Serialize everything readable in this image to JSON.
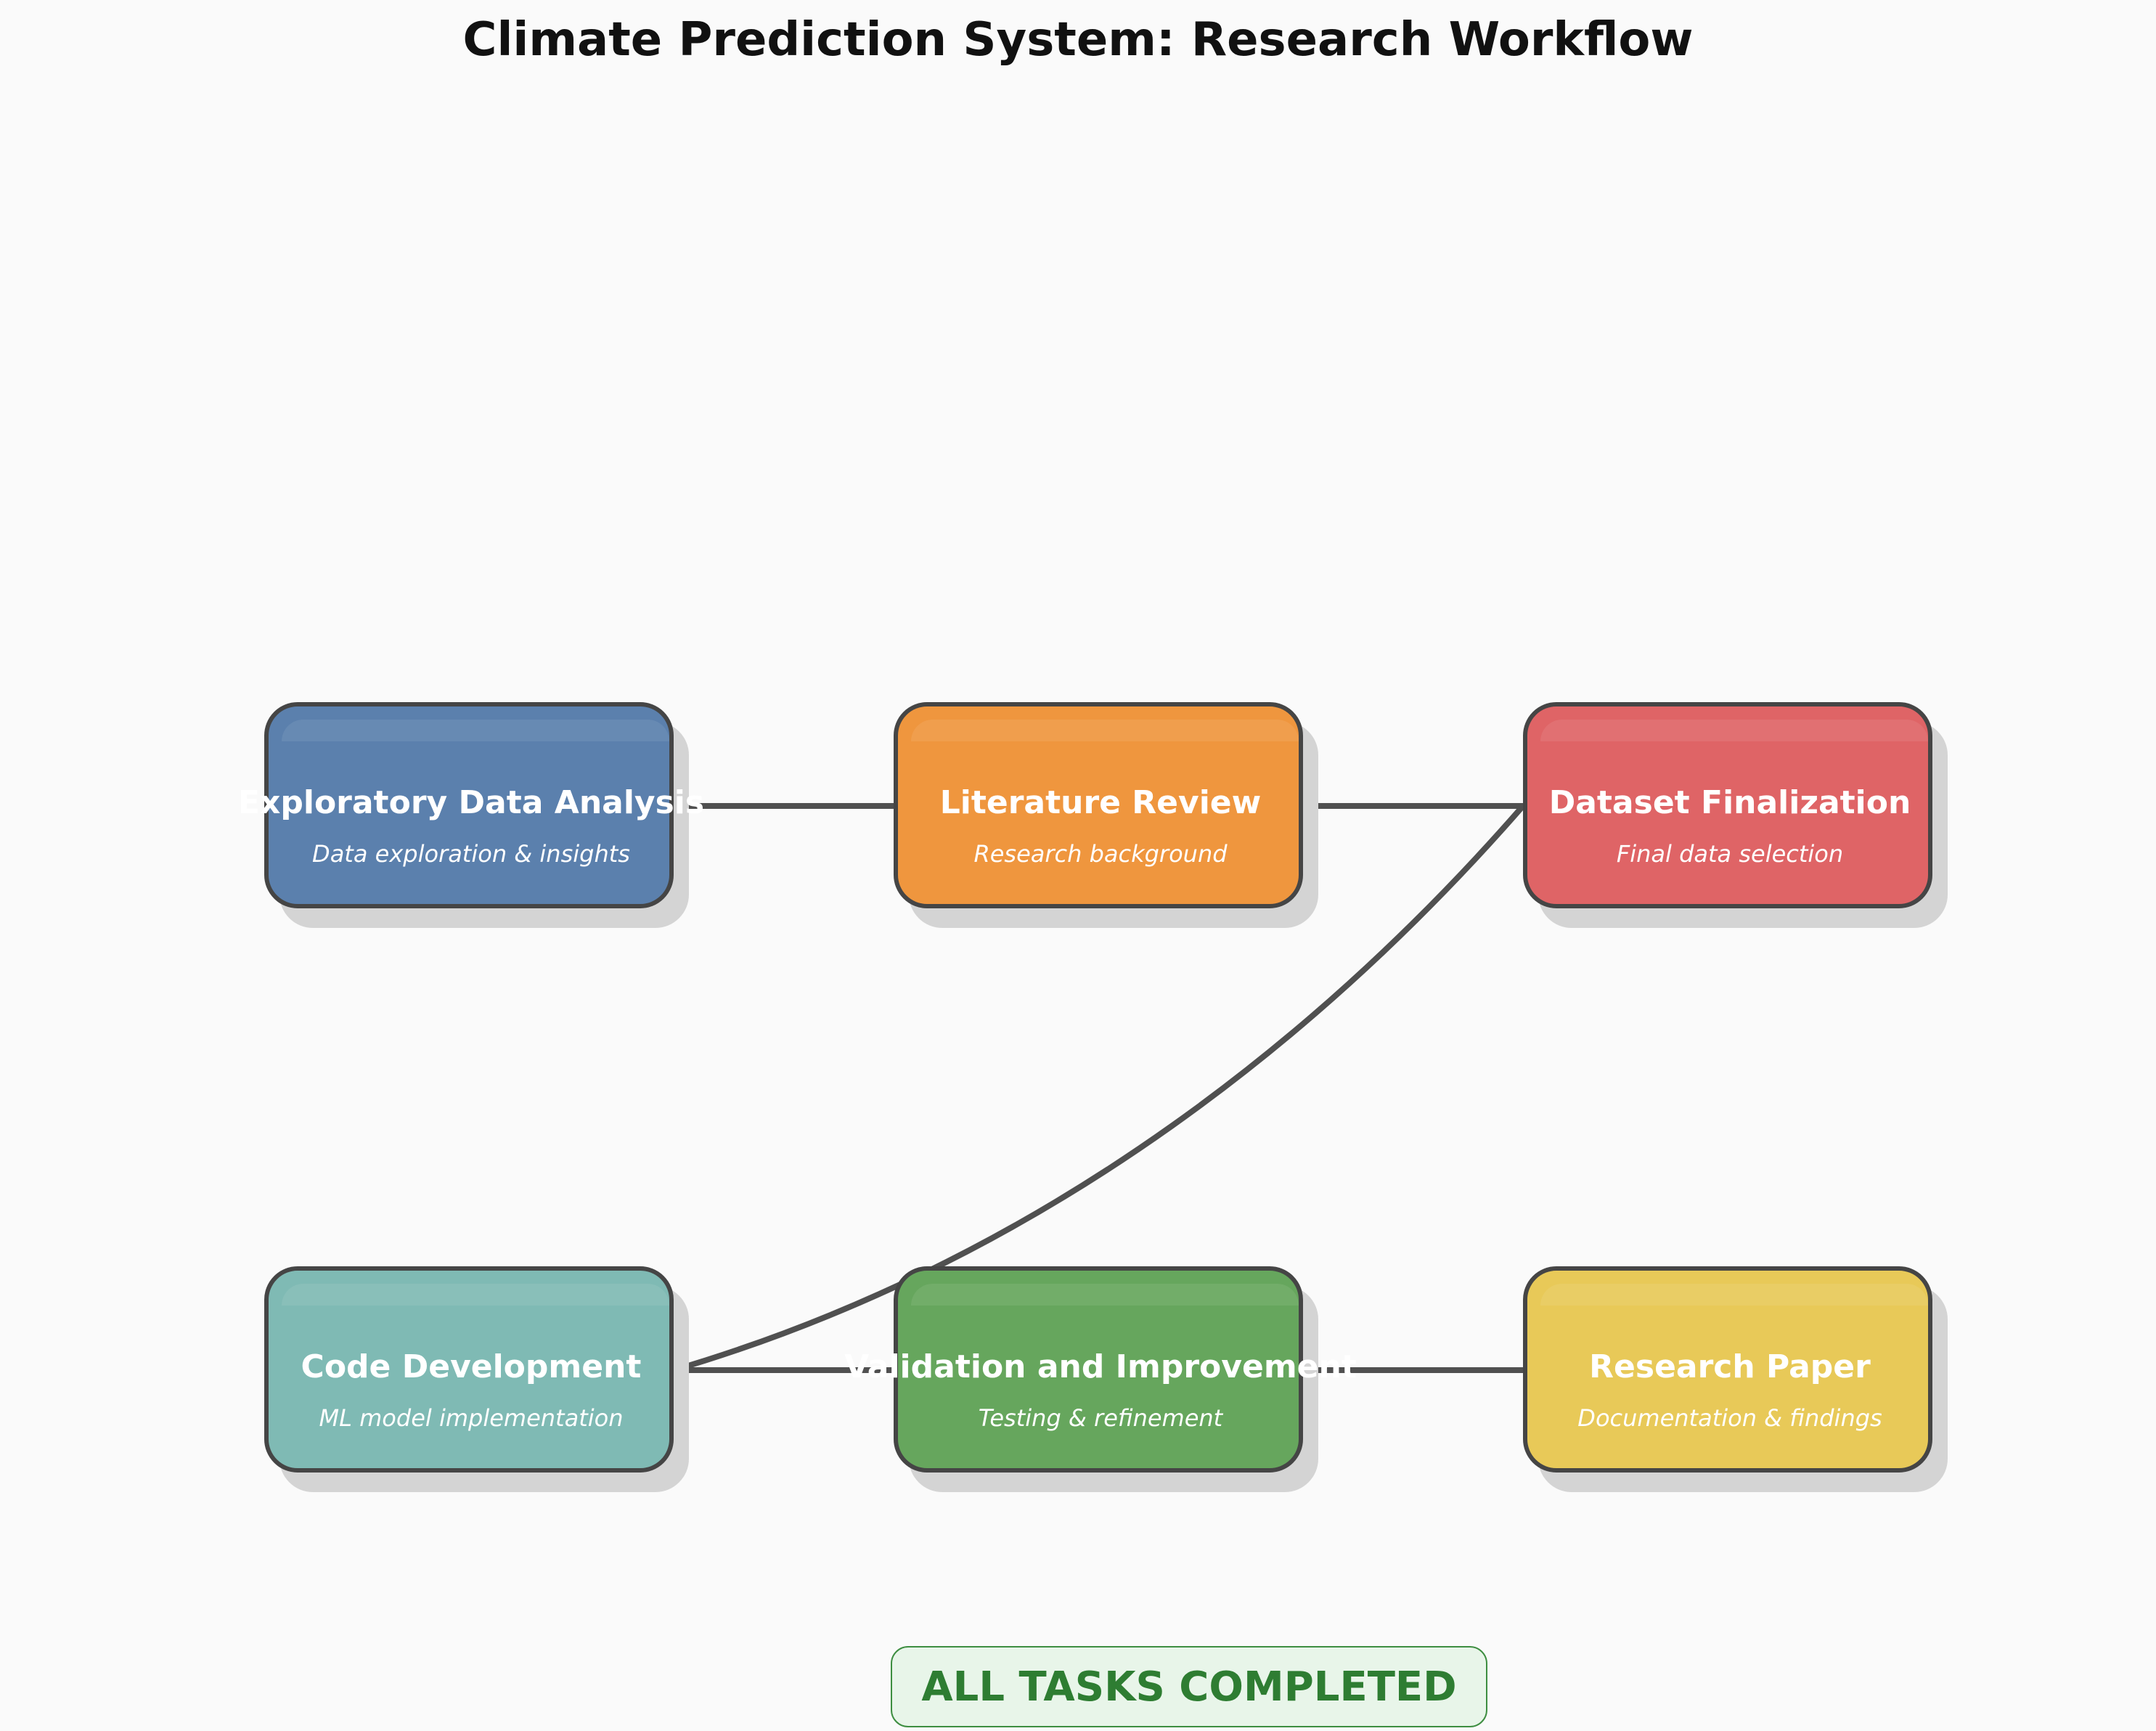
{
  "title": "Climate Prediction System: Research Workflow",
  "nodes": [
    {
      "label": "Exploratory Data Analysis",
      "sub": "Data exploration & insights",
      "color": "#5b80ad"
    },
    {
      "label": "Literature Review",
      "sub": "Research background",
      "color": "#ef963e"
    },
    {
      "label": "Dataset Finalization",
      "sub": "Final data selection",
      "color": "#df6466"
    },
    {
      "label": "Code Development",
      "sub": "ML model implementation",
      "color": "#7fbab4"
    },
    {
      "label": "Validation and Improvement",
      "sub": "Testing & refinement",
      "color": "#66a65d"
    },
    {
      "label": "Research Paper",
      "sub": "Documentation & findings",
      "color": "#e8c958"
    }
  ],
  "edges": [
    {
      "from": 0,
      "to": 1
    },
    {
      "from": 1,
      "to": 2
    },
    {
      "from": 3,
      "to": 2
    },
    {
      "from": 3,
      "to": 4
    },
    {
      "from": 4,
      "to": 5
    }
  ],
  "status": "ALL TASKS COMPLETED"
}
